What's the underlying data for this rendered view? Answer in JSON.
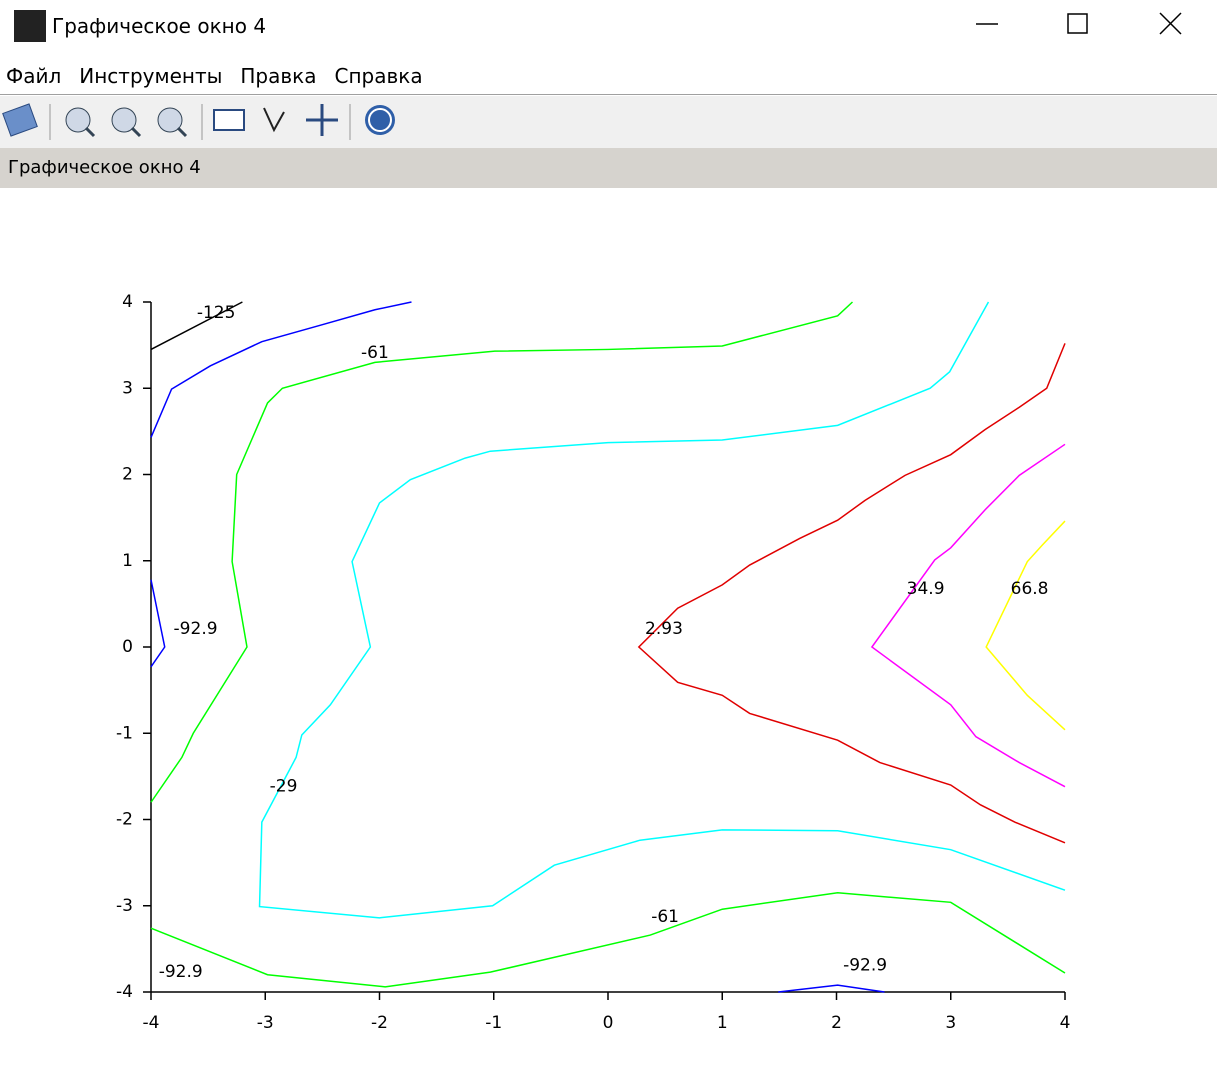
{
  "window": {
    "title": "Графическое окно 4"
  },
  "menu": {
    "items": [
      "Файл",
      "Инструменты",
      "Правка",
      "Справка"
    ]
  },
  "canvas": {
    "label": "Графическое окно 4"
  },
  "chart_data": {
    "type": "contour",
    "xlim": [
      -4,
      4
    ],
    "ylim": [
      -4,
      4
    ],
    "xticks": [
      -4,
      -3,
      -2,
      -1,
      0,
      1,
      2,
      3,
      4
    ],
    "yticks": [
      -4,
      -3,
      -2,
      -1,
      0,
      1,
      2,
      3,
      4
    ],
    "series": [
      {
        "level": -125,
        "color": "#000000",
        "lines": [
          {
            "x": [
              -4,
              -3.2
            ],
            "y": [
              3.45,
              4
            ]
          }
        ],
        "labels": [
          {
            "x": -3.43,
            "y": 3.87
          }
        ]
      },
      {
        "level": -92.9,
        "color": "#0000ff",
        "lines": [
          {
            "x": [
              -4,
              -3.82,
              -3.48,
              -3.03,
              -2.52,
              -2.04,
              -1.72
            ],
            "y": [
              2.43,
              2.99,
              3.26,
              3.54,
              3.73,
              3.91,
              4
            ]
          },
          {
            "x": [
              -4,
              -3.88,
              -4
            ],
            "y": [
              0.78,
              0,
              -0.23
            ]
          },
          {
            "x": [
              1.49,
              2.01,
              2.42
            ],
            "y": [
              -4,
              -3.92,
              -4
            ]
          }
        ],
        "labels": [
          {
            "x": -3.61,
            "y": 0.21
          },
          {
            "x": -3.74,
            "y": -3.77
          },
          {
            "x": 2.25,
            "y": -3.69
          }
        ]
      },
      {
        "level": -61,
        "color": "#00ff00",
        "lines": [
          {
            "x": [
              -4,
              -3.73,
              -3.63,
              -3.16,
              -3.29,
              -3.25,
              -2.98,
              -2.85,
              -2.04,
              -0.99,
              0,
              1.0,
              2.01,
              2.14
            ],
            "y": [
              -1.8,
              -1.28,
              -1.0,
              0,
              0.99,
              2.0,
              2.83,
              3.0,
              3.3,
              3.43,
              3.45,
              3.49,
              3.84,
              4
            ]
          },
          {
            "x": [
              -4,
              -2.98,
              -1.95,
              -1.03,
              0.37,
              1.0,
              2.01,
              3.0,
              4
            ],
            "y": [
              -3.26,
              -3.8,
              -3.94,
              -3.77,
              -3.34,
              -3.04,
              -2.85,
              -2.96,
              -3.78
            ]
          }
        ],
        "labels": [
          {
            "x": -2.04,
            "y": 3.41
          },
          {
            "x": 0.5,
            "y": -3.13
          }
        ]
      },
      {
        "level": -29,
        "color": "#00ffff",
        "lines": [
          {
            "x": [
              3.33,
              2.99,
              2.82,
              2.01,
              1.0,
              0,
              -1.03,
              -1.25,
              -1.73,
              -2.0,
              -2.24,
              -2.08,
              -2.43,
              -2.68,
              -2.73,
              -3.03,
              -3.05,
              -2.0,
              -1.01,
              -0.47,
              0.28,
              1.0,
              2.01,
              3.0,
              4
            ],
            "y": [
              4,
              3.19,
              3.0,
              2.57,
              2.4,
              2.37,
              2.27,
              2.19,
              1.94,
              1.67,
              0.99,
              0,
              -0.67,
              -1.02,
              -1.28,
              -2.03,
              -3.01,
              -3.14,
              -3.0,
              -2.53,
              -2.24,
              -2.12,
              -2.13,
              -2.35,
              -2.82
            ]
          }
        ],
        "labels": [
          {
            "x": -2.84,
            "y": -1.62
          }
        ]
      },
      {
        "level": 2.93,
        "color": "#e00000",
        "lines": [
          {
            "x": [
              4,
              3.84,
              3.6,
              3.3,
              3.0,
              2.6,
              2.25,
              2.01,
              1.68,
              1.24,
              1.0,
              0.61,
              0.27,
              0.61,
              1.0,
              1.24,
              2.01,
              2.38,
              3.0,
              3.26,
              3.56,
              4
            ],
            "y": [
              3.52,
              3.0,
              2.78,
              2.52,
              2.23,
              1.99,
              1.7,
              1.47,
              1.26,
              0.95,
              0.72,
              0.45,
              0,
              -0.41,
              -0.56,
              -0.77,
              -1.08,
              -1.34,
              -1.6,
              -1.83,
              -2.03,
              -2.27
            ]
          }
        ],
        "labels": [
          {
            "x": 0.49,
            "y": 0.21
          }
        ]
      },
      {
        "level": 34.9,
        "color": "#ff00ff",
        "lines": [
          {
            "x": [
              4,
              3.6,
              3.3,
              3.0,
              2.86,
              2.31,
              3.0,
              3.22,
              3.6,
              4
            ],
            "y": [
              2.35,
              1.99,
              1.59,
              1.15,
              1.01,
              0,
              -0.67,
              -1.04,
              -1.34,
              -1.62
            ]
          }
        ],
        "labels": [
          {
            "x": 2.78,
            "y": 0.67
          }
        ]
      },
      {
        "level": 66.8,
        "color": "#ffff00",
        "lines": [
          {
            "x": [
              4,
              3.8,
              3.67,
              3.31,
              3.67,
              4
            ],
            "y": [
              1.46,
              1.18,
              0.99,
              0,
              -0.56,
              -0.96
            ]
          }
        ],
        "labels": [
          {
            "x": 3.69,
            "y": 0.67
          }
        ]
      }
    ]
  }
}
